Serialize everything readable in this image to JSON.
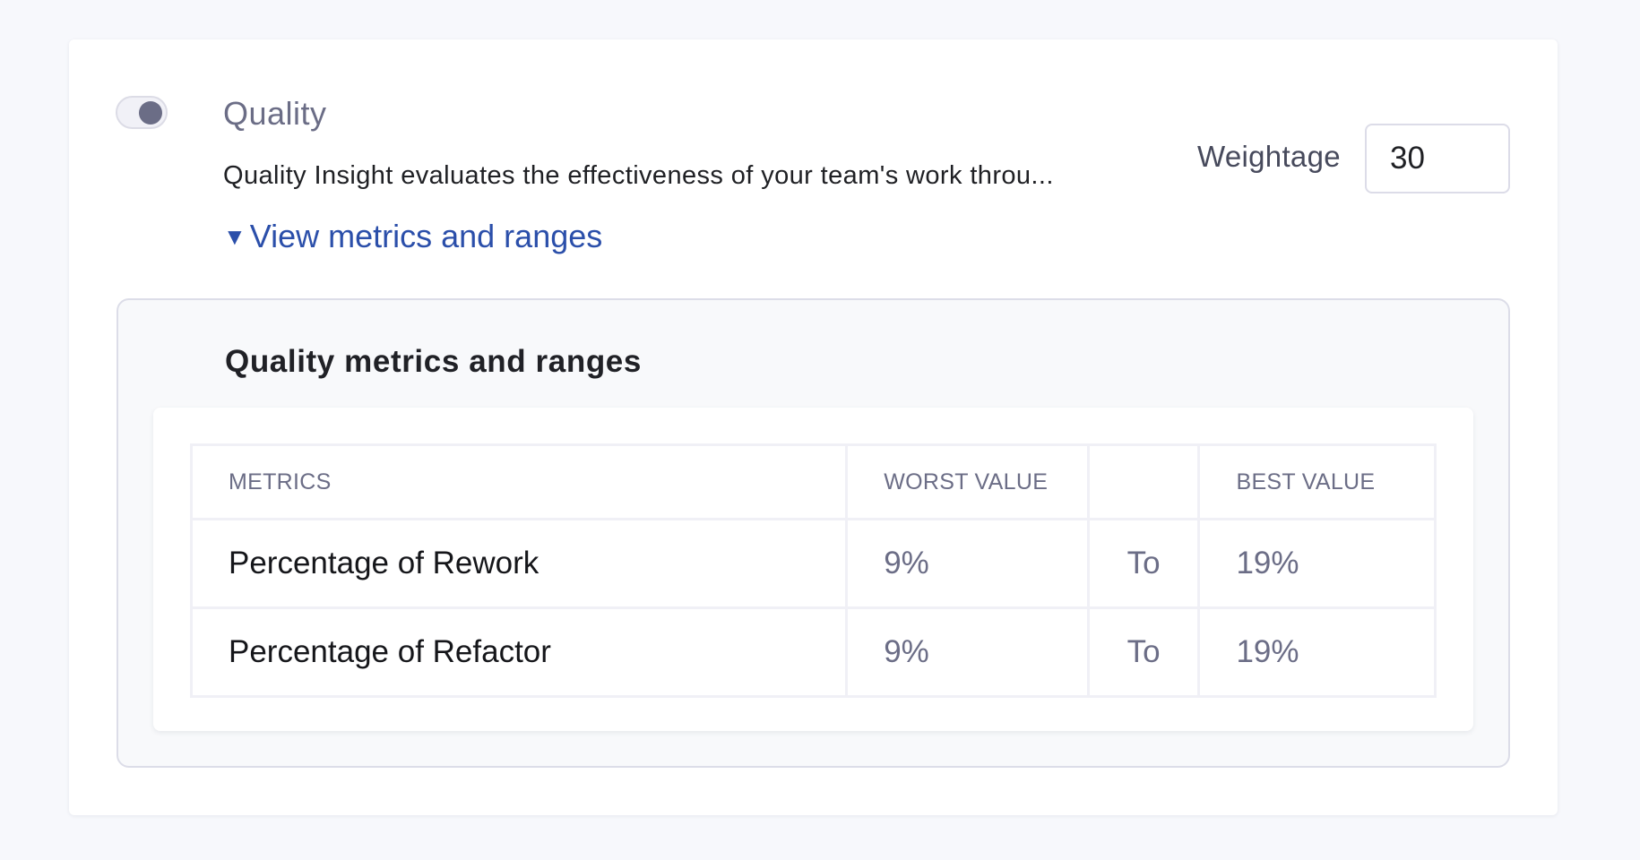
{
  "section": {
    "toggle_on": true,
    "title": "Quality",
    "description": "Quality Insight evaluates the effectiveness of your team's work throu...",
    "link": "View metrics and ranges",
    "weightage_label": "Weightage",
    "weightage_value": "30"
  },
  "panel": {
    "title": "Quality metrics and ranges",
    "headers": [
      "METRICS",
      "WORST VALUE",
      "",
      "BEST VALUE"
    ],
    "rows": [
      {
        "metric": "Percentage of Rework",
        "worst": "9%",
        "sep": "To",
        "best": "19%"
      },
      {
        "metric": "Percentage of Refactor",
        "worst": "9%",
        "sep": "To",
        "best": "19%"
      }
    ]
  }
}
